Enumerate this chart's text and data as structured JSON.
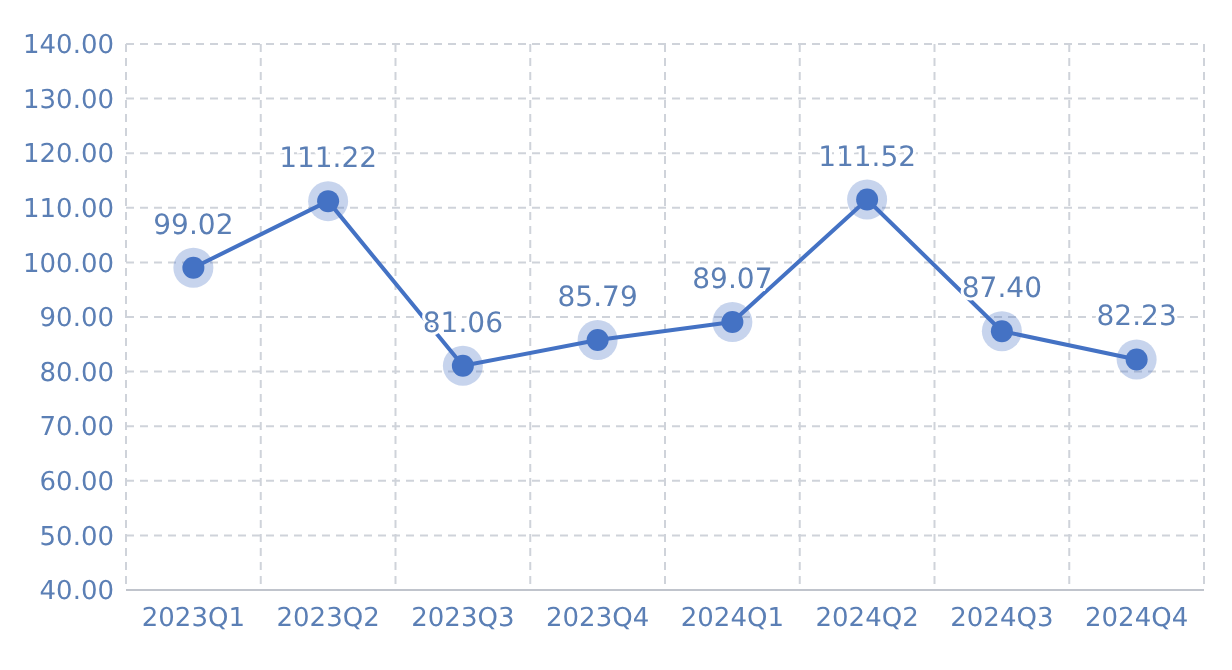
{
  "chart_data": {
    "type": "line",
    "categories": [
      "2023Q1",
      "2023Q2",
      "2023Q3",
      "2023Q4",
      "2024Q1",
      "2024Q2",
      "2024Q3",
      "2024Q4"
    ],
    "series": [
      {
        "color": "#4472c4",
        "values": [
          99.02,
          111.22,
          81.06,
          85.79,
          89.07,
          111.52,
          87.4,
          82.23
        ],
        "value_labels": [
          "99.02",
          "111.22",
          "81.06",
          "85.79",
          "89.07",
          "111.52",
          "87.40",
          "82.23"
        ]
      }
    ],
    "ylim": [
      40,
      140
    ],
    "yticks": [
      {
        "value": 40,
        "label": "40.00"
      },
      {
        "value": 50,
        "label": "50.00"
      },
      {
        "value": 60,
        "label": "60.00"
      },
      {
        "value": 70,
        "label": "70.00"
      },
      {
        "value": 80,
        "label": "80.00"
      },
      {
        "value": 90,
        "label": "90.00"
      },
      {
        "value": 100,
        "label": "100.00"
      },
      {
        "value": 110,
        "label": "110.00"
      },
      {
        "value": 120,
        "label": "120.00"
      },
      {
        "value": 130,
        "label": "130.00"
      },
      {
        "value": 140,
        "label": "140.00"
      }
    ],
    "grid": true,
    "marker": "circle",
    "line_style": "solid"
  }
}
